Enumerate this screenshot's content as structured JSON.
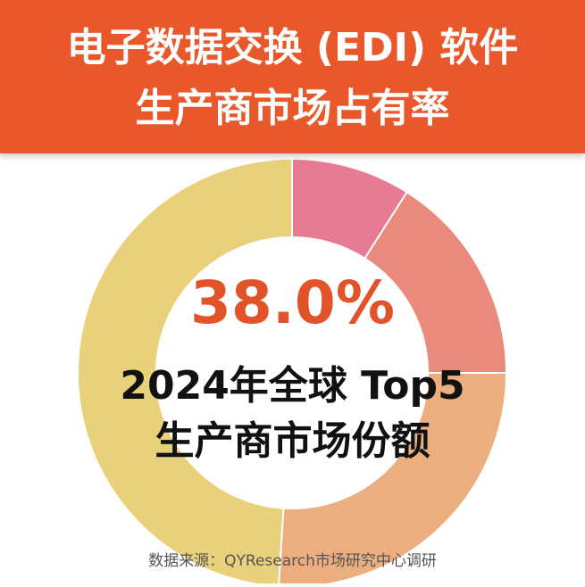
{
  "header": {
    "title_line1": "电子数据交换 (EDI) 软件",
    "title_line2": "生产商市场占有率"
  },
  "center": {
    "big_percent": "38.0%",
    "caption_line1": "2024年全球 Top5",
    "caption_line2": "生产商市场份额"
  },
  "source": "数据来源：QYResearch市场研究中心调研",
  "colors": {
    "header_bg": "#e8582a",
    "accent": "#e3532a"
  },
  "chart_data": {
    "type": "pie",
    "donut": true,
    "values": [
      9,
      16,
      26,
      49
    ],
    "colors": [
      "#e87b94",
      "#e98a7d",
      "#ecae7f",
      "#e9d07a"
    ]
  }
}
